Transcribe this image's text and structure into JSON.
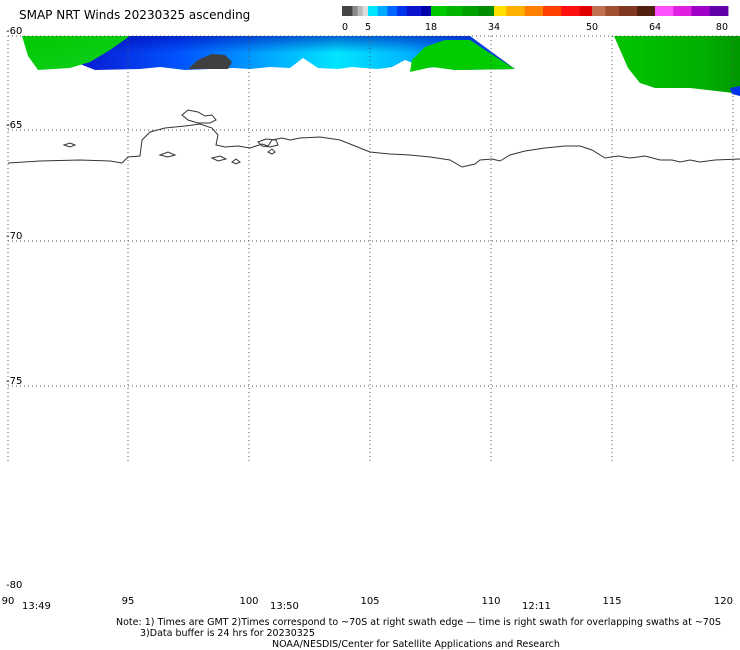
{
  "title": "SMAP NRT Winds 20230325 ascending",
  "colorbar": {
    "ticks": [
      "0",
      "5",
      "18",
      "34",
      "50",
      "64",
      "80"
    ],
    "segments": [
      {
        "from": 0,
        "to": 2,
        "color": "#454545"
      },
      {
        "from": 2,
        "to": 3,
        "color": "#8a8a8a"
      },
      {
        "from": 3,
        "to": 4,
        "color": "#b8b8b8"
      },
      {
        "from": 4,
        "to": 5,
        "color": "#dcdcdc"
      },
      {
        "from": 5,
        "to": 7,
        "color": "#00e5ff"
      },
      {
        "from": 7,
        "to": 9,
        "color": "#00aaff"
      },
      {
        "from": 9,
        "to": 11,
        "color": "#0066ff"
      },
      {
        "from": 11,
        "to": 13,
        "color": "#0033ee"
      },
      {
        "from": 13,
        "to": 16,
        "color": "#0a14cc"
      },
      {
        "from": 16,
        "to": 18,
        "color": "#0000aa"
      },
      {
        "from": 18,
        "to": 22,
        "color": "#00c800"
      },
      {
        "from": 22,
        "to": 26,
        "color": "#00b400"
      },
      {
        "from": 26,
        "to": 30,
        "color": "#00a000"
      },
      {
        "from": 30,
        "to": 34,
        "color": "#008c00"
      },
      {
        "from": 34,
        "to": 36,
        "color": "#ffe000"
      },
      {
        "from": 36,
        "to": 39,
        "color": "#ffb000"
      },
      {
        "from": 39,
        "to": 42,
        "color": "#ff8000"
      },
      {
        "from": 42,
        "to": 45,
        "color": "#ff4000"
      },
      {
        "from": 45,
        "to": 48,
        "color": "#ff1010"
      },
      {
        "from": 48,
        "to": 50,
        "color": "#e00000"
      },
      {
        "from": 50,
        "to": 53,
        "color": "#c07050"
      },
      {
        "from": 53,
        "to": 56,
        "color": "#a05030"
      },
      {
        "from": 56,
        "to": 60,
        "color": "#803820"
      },
      {
        "from": 60,
        "to": 64,
        "color": "#502010"
      },
      {
        "from": 64,
        "to": 68,
        "color": "#ff50ff"
      },
      {
        "from": 68,
        "to": 72,
        "color": "#e020e0"
      },
      {
        "from": 72,
        "to": 76,
        "color": "#a000c8"
      },
      {
        "from": 76,
        "to": 80,
        "color": "#6000a8"
      }
    ]
  },
  "map": {
    "lon_range": [
      90,
      120
    ],
    "lat_range": [
      -80,
      -60
    ],
    "lon_ticks": [
      "90",
      "95",
      "100",
      "105",
      "110",
      "115",
      "120"
    ],
    "lat_ticks": [
      "-60",
      "-65",
      "-70",
      "-75",
      "-80"
    ],
    "grid": "dotted",
    "coastline_color": "#333333"
  },
  "swath_times": [
    "13:49",
    "13:50",
    "12:11"
  ],
  "notes": {
    "line1": "Note: 1) Times are GMT  2)Times correspond to ~70S at right swath edge — time is right swath for overlapping swaths at ~70S",
    "line2": "3)Data buffer is 24 hrs for 20230325",
    "line3": "NOAA/NESDIS/Center for Satellite Applications and Research"
  }
}
